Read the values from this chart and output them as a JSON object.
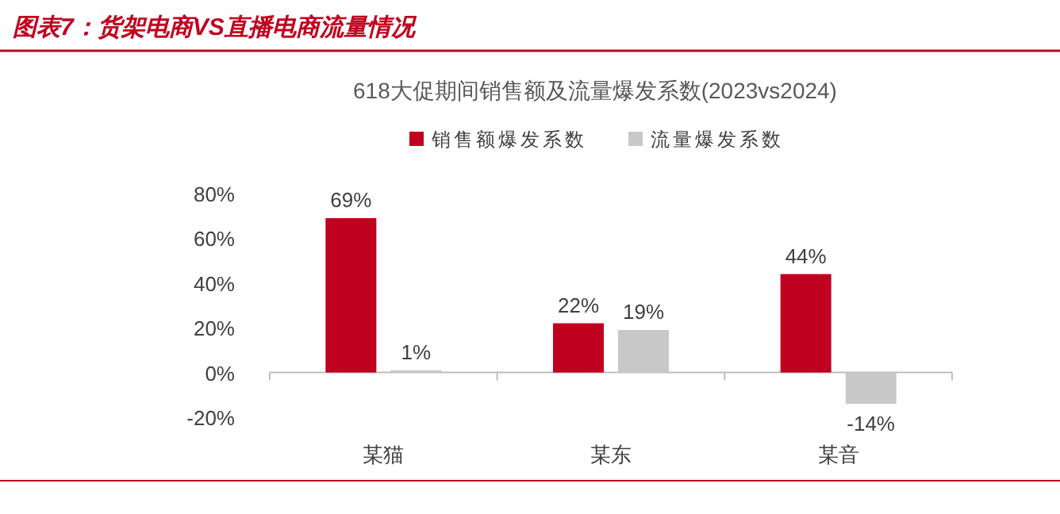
{
  "chart_data": {
    "type": "bar",
    "title": "图表7：货架电商VS直播电商流量情况",
    "subtitle": "618大促期间销售额及流量爆发系数(2023vs2024)",
    "categories": [
      "某猫",
      "某东",
      "某音"
    ],
    "series": [
      {
        "name": "销售额爆发系数",
        "color": "#c0001f",
        "values": [
          69,
          22,
          44
        ],
        "value_labels": [
          "69%",
          "22%",
          "44%"
        ]
      },
      {
        "name": "流量爆发系数",
        "color": "#c8c8c8",
        "values": [
          1,
          19,
          -14
        ],
        "value_labels": [
          "1%",
          "19%",
          "-14%"
        ]
      }
    ],
    "ylim": [
      -20,
      80
    ],
    "yticks": [
      {
        "value": -20,
        "label": "-20%"
      },
      {
        "value": 0,
        "label": "0%"
      },
      {
        "value": 20,
        "label": "20%"
      },
      {
        "value": 40,
        "label": "40%"
      },
      {
        "value": 60,
        "label": "60%"
      },
      {
        "value": 80,
        "label": "80%"
      }
    ],
    "legend": "top"
  }
}
